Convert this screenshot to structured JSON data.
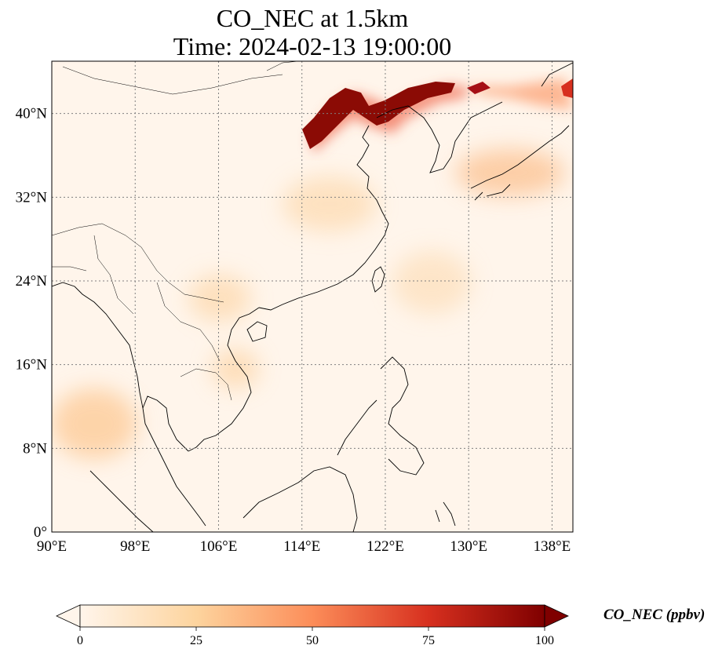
{
  "title": {
    "line1": "CO_NEC at 1.5km",
    "line2": "Time: 2024-02-13 19:00:00"
  },
  "map": {
    "lon_range": [
      90,
      140
    ],
    "lat_range": [
      0,
      45
    ],
    "lon_ticks": [
      {
        "value": 90,
        "label": "90°E"
      },
      {
        "value": 98,
        "label": "98°E"
      },
      {
        "value": 106,
        "label": "106°E"
      },
      {
        "value": 114,
        "label": "114°E"
      },
      {
        "value": 122,
        "label": "122°E"
      },
      {
        "value": 130,
        "label": "130°E"
      },
      {
        "value": 138,
        "label": "138°E"
      }
    ],
    "lat_ticks": [
      {
        "value": 0,
        "label": "0°"
      },
      {
        "value": 8,
        "label": "8°N"
      },
      {
        "value": 16,
        "label": "16°N"
      },
      {
        "value": 24,
        "label": "24°N"
      },
      {
        "value": 32,
        "label": "32°N"
      },
      {
        "value": 40,
        "label": "40°N"
      }
    ],
    "gridlines": true,
    "background_color": "#fff5eb"
  },
  "colorbar": {
    "label": "CO_NEC (ppbv)",
    "colormap": "OrRd",
    "min": 0,
    "max": 100,
    "extend": "both",
    "ticks": [
      {
        "value": 0,
        "label": "0"
      },
      {
        "value": 25,
        "label": "25"
      },
      {
        "value": 50,
        "label": "50"
      },
      {
        "value": 75,
        "label": "75"
      },
      {
        "value": 100,
        "label": "100"
      }
    ]
  }
}
